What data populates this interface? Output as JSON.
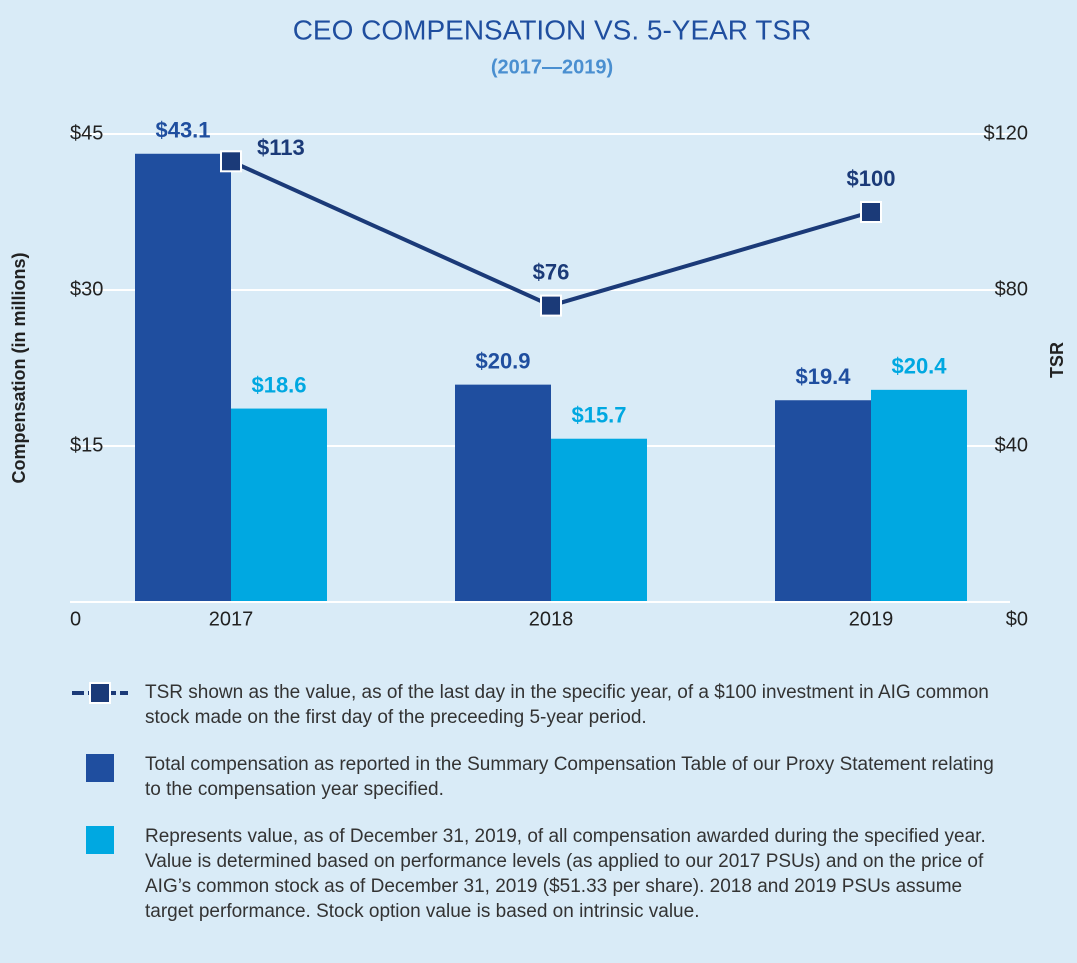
{
  "chart_data": {
    "type": "bar",
    "title": "CEO COMPENSATION VS. 5-YEAR TSR",
    "subtitle": "(2017—2019)",
    "y_label": "Compensation (in millions)",
    "y2_label": "TSR",
    "categories": [
      "2017",
      "2018",
      "2019"
    ],
    "series": [
      {
        "name": "Total compensation as reported in the Summary Compensation Table of our Proxy Statement relating to the compensation year specified.",
        "color": "#1f4e9f",
        "values": [
          43.1,
          20.9,
          19.4
        ],
        "value_labels": [
          "$43.1",
          "$20.9",
          "$19.4"
        ]
      },
      {
        "name": "Represents value, as of December 31, 2019, of all compensation awarded during the specified year. Value is determined based on performance levels (as applied to our 2017 PSUs) and on the price of AIG’s common stock as of December 31, 2019 ($51.33 per share). 2018 and 2019 PSUs assume target performance. Stock option value is based on intrinsic value.",
        "color": "#00a8e1",
        "values": [
          18.6,
          15.7,
          20.4
        ],
        "value_labels": [
          "$18.6",
          "$15.7",
          "$20.4"
        ]
      },
      {
        "name": "TSR shown as the value, as of the last day in the specific year, of a $100 investment in AIG common stock made on the first day of the preceeding 5-year period.",
        "color": "#1b3a78",
        "type": "line",
        "axis": "y2",
        "values": [
          113,
          76,
          100
        ],
        "value_labels": [
          "$113",
          "$76",
          "$100"
        ]
      }
    ],
    "ylim": [
      0,
      45
    ],
    "yticks": [
      0,
      {
        "value": 15,
        "label": "$15"
      },
      {
        "value": 30,
        "label": "$30"
      },
      {
        "value": 45,
        "label": "$45"
      }
    ],
    "y2lim": [
      0,
      120
    ],
    "y2ticks": [
      {
        "value": 0,
        "label": "$0"
      },
      {
        "value": 40,
        "label": "$40"
      },
      {
        "value": 80,
        "label": "$80"
      },
      {
        "value": 120,
        "label": "$120"
      }
    ],
    "grid": true
  }
}
